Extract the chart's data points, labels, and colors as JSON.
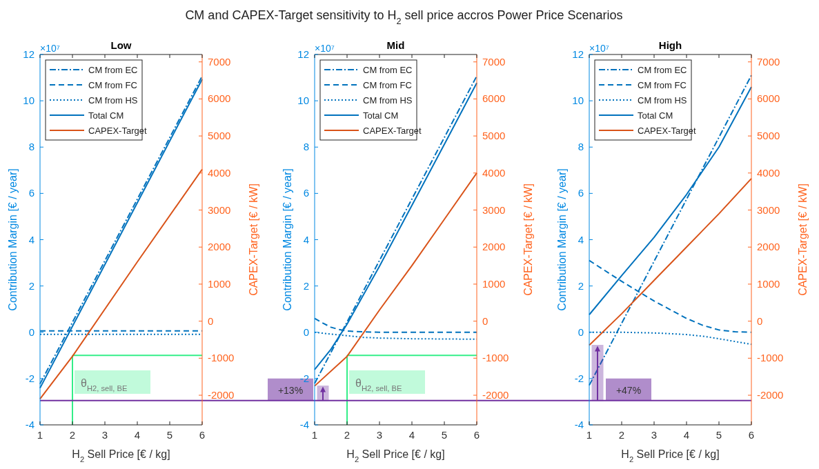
{
  "chart_data": [
    {
      "type": "line",
      "title": "Low",
      "xlabel": "H$_{2}$ Sell Price [€ / kg]",
      "ylabel": "Contribution Margin [€ / year]",
      "y2label": "CAPEX-Target [€ / kW]",
      "xlim": [
        1,
        6
      ],
      "xticks": [
        1,
        2,
        3,
        4,
        5,
        6
      ],
      "ylim": [
        -4,
        12
      ],
      "yticks": [
        -4,
        -2,
        0,
        2,
        4,
        6,
        8,
        10,
        12
      ],
      "y2lim": [
        -2800,
        7200
      ],
      "y2ticks": [
        -2000,
        -1000,
        0,
        1000,
        2000,
        3000,
        4000,
        5000,
        6000,
        7000
      ],
      "legend": "top left",
      "series": [
        {
          "name": "CM from EC",
          "color": "#0072bd",
          "line_style": "dashdot",
          "x": [
            1,
            6
          ],
          "values": [
            -2.23,
            11.07
          ]
        },
        {
          "name": "CM from FC",
          "color": "#0072bd",
          "line_style": "dashed",
          "x": [
            1,
            6
          ],
          "values": [
            0.06,
            0.06
          ]
        },
        {
          "name": "CM from HS",
          "color": "#0072bd",
          "line_style": "dotted",
          "x": [
            1,
            6
          ],
          "values": [
            -0.09,
            -0.09
          ]
        },
        {
          "name": "Total CM",
          "color": "#0072bd",
          "line_style": "solid",
          "x": [
            1,
            6
          ],
          "values": [
            -2.41,
            10.93
          ]
        },
        {
          "name": "CAPEX-Target",
          "color": "#d95319",
          "line_style": "solid",
          "axis": "y2",
          "x": [
            1,
            2,
            4,
            6
          ],
          "values": [
            -2100,
            -950,
            1600,
            4100
          ]
        }
      ],
      "ref_lines": [
        {
          "axis": "x",
          "value": 2,
          "label": "θ$_{H2, sell, BE}$",
          "color": "#33ee88",
          "line_style": "solid"
        },
        {
          "axis": "y",
          "value": -1,
          "color": "#33ee88",
          "line_style": "solid"
        },
        {
          "axis": "y",
          "value": -2.95,
          "color": "#7030a0",
          "line_style": "solid"
        }
      ],
      "annotations": [
        "×10⁷"
      ]
    },
    {
      "type": "line",
      "title": "Mid",
      "subtitle": "CM and CAPEX-Target sensitivity to H$_{2}$ sell price accros Power Price Scenarios",
      "xlabel": "H$_{2}$ Sell Price [€ / kg]",
      "ylabel": "Contribution Margin [€ / year]",
      "y2label": "CAPEX-Target [€ / kW]",
      "xlim": [
        1,
        6
      ],
      "xticks": [
        1,
        2,
        3,
        4,
        5,
        6
      ],
      "ylim": [
        -4,
        12
      ],
      "yticks": [
        -4,
        -2,
        0,
        2,
        4,
        6,
        8,
        10,
        12
      ],
      "y2lim": [
        -2800,
        7200
      ],
      "y2ticks": [
        -2000,
        -1000,
        0,
        1000,
        2000,
        3000,
        4000,
        5000,
        6000,
        7000
      ],
      "legend": "top left",
      "series": [
        {
          "name": "CM from EC",
          "color": "#0072bd",
          "line_style": "dashdot",
          "x": [
            1,
            6
          ],
          "values": [
            -2.21,
            11.07
          ]
        },
        {
          "name": "CM from FC",
          "color": "#0072bd",
          "line_style": "dashed",
          "x": [
            1,
            1.25,
            1.5,
            1.75,
            2,
            2.5,
            3,
            6
          ],
          "values": [
            0.6,
            0.4,
            0.22,
            0.12,
            0.05,
            0.02,
            0,
            0
          ]
        },
        {
          "name": "CM from HS",
          "color": "#0072bd",
          "line_style": "dotted",
          "x": [
            1,
            1.5,
            2,
            2.5,
            3,
            4,
            6
          ],
          "values": [
            0,
            -0.08,
            -0.15,
            -0.22,
            -0.25,
            -0.28,
            -0.3
          ]
        },
        {
          "name": "Total CM",
          "color": "#0072bd",
          "line_style": "solid",
          "x": [
            1,
            1.5,
            2,
            3,
            4,
            5,
            6
          ],
          "values": [
            -1.61,
            -0.74,
            0.35,
            2.85,
            5.48,
            8.12,
            10.77
          ]
        },
        {
          "name": "CAPEX-Target",
          "color": "#d95319",
          "line_style": "solid",
          "axis": "y2",
          "x": [
            1,
            2,
            3,
            4,
            5,
            6
          ],
          "values": [
            -1750,
            -950,
            300,
            1500,
            2750,
            4000
          ]
        }
      ],
      "ref_lines": [
        {
          "axis": "x",
          "value": 2,
          "label": "θ$_{H2, sell, BE}$",
          "color": "#33ee88",
          "line_style": "solid"
        },
        {
          "axis": "y",
          "value": -1,
          "color": "#33ee88",
          "line_style": "solid"
        },
        {
          "axis": "y",
          "value": -2.95,
          "color": "#7030a0",
          "line_style": "solid"
        }
      ],
      "annotations": [
        "×10⁷",
        "+13%"
      ]
    },
    {
      "type": "line",
      "title": "High",
      "xlabel": "H$_{2}$ Sell Price [€ / kg]",
      "ylabel": "Contribution Margin [€ / year]",
      "y2label": "CAPEX-Target [€ / kW]",
      "xlim": [
        1,
        6
      ],
      "xticks": [
        1,
        2,
        3,
        4,
        5,
        6
      ],
      "ylim": [
        -4,
        12
      ],
      "yticks": [
        -4,
        -2,
        0,
        2,
        4,
        6,
        8,
        10,
        12
      ],
      "y2lim": [
        -2800,
        7200
      ],
      "y2ticks": [
        -2000,
        -1000,
        0,
        1000,
        2000,
        3000,
        4000,
        5000,
        6000,
        7000
      ],
      "legend": "top left",
      "series": [
        {
          "name": "CM from EC",
          "color": "#0072bd",
          "line_style": "dashdot",
          "x": [
            1,
            6
          ],
          "values": [
            -2.29,
            11.1
          ]
        },
        {
          "name": "CM from FC",
          "color": "#0072bd",
          "line_style": "dashed",
          "x": [
            1,
            2,
            3,
            4,
            4.5,
            5,
            5.5,
            6
          ],
          "values": [
            3.1,
            2.2,
            1.35,
            0.6,
            0.3,
            0.1,
            0.02,
            0
          ]
        },
        {
          "name": "CM from HS",
          "color": "#0072bd",
          "line_style": "dotted",
          "x": [
            1,
            2,
            3,
            3.5,
            4,
            4.5,
            5,
            5.5,
            6
          ],
          "values": [
            0,
            0,
            -0.03,
            -0.06,
            -0.1,
            -0.17,
            -0.28,
            -0.4,
            -0.52
          ]
        },
        {
          "name": "Total CM",
          "color": "#0072bd",
          "line_style": "solid",
          "x": [
            1,
            2,
            3,
            4,
            5,
            6
          ],
          "values": [
            0.76,
            2.45,
            4.1,
            5.95,
            8.0,
            10.6
          ]
        },
        {
          "name": "CAPEX-Target",
          "color": "#d95319",
          "line_style": "solid",
          "axis": "y2",
          "x": [
            1,
            2,
            3,
            4,
            5,
            6
          ],
          "values": [
            -650,
            200,
            1100,
            2000,
            2900,
            3850
          ]
        }
      ],
      "ref_lines": [
        {
          "axis": "y",
          "value": -2.95,
          "color": "#7030a0",
          "line_style": "solid"
        }
      ],
      "annotations": [
        "×10⁷",
        "+47%"
      ]
    }
  ]
}
